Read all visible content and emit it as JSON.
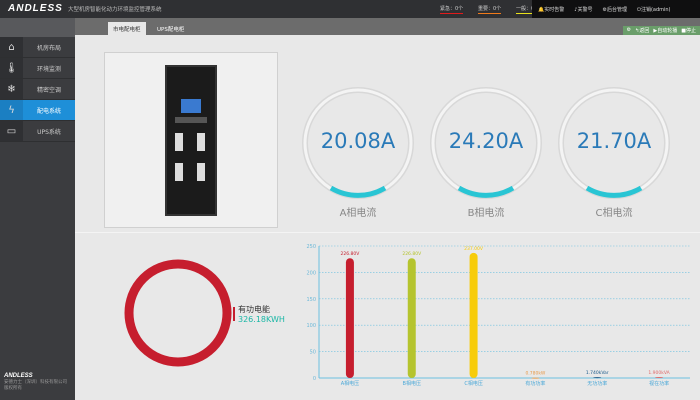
{
  "header": {
    "logo": "ANDLESS",
    "title": "大型机房智能化动力环境监控管理系统",
    "alarms": [
      {
        "label": "紧急：0个",
        "color": "#e01b1b"
      },
      {
        "label": "重要：0个",
        "color": "#f07a1a"
      },
      {
        "label": "一般：0个",
        "color": "#e8e01a"
      }
    ],
    "right": [
      "实时告警",
      "关警号",
      "后台管理",
      "注销(admin)"
    ]
  },
  "tabs": [
    {
      "label": "市电配电柜",
      "active": true
    },
    {
      "label": "UPS配电柜",
      "active": false
    }
  ],
  "toolbar": {
    "back": "返回",
    "autoplay": "自动轮播",
    "stop": "停止"
  },
  "sidebar": {
    "items": [
      {
        "label": "机房布局",
        "icon": "home-icon",
        "glyph": "⌂"
      },
      {
        "label": "环境监测",
        "icon": "thermometer-icon",
        "glyph": "🌡"
      },
      {
        "label": "精密空调",
        "icon": "snowflake-icon",
        "glyph": "❄"
      },
      {
        "label": "配电系统",
        "icon": "lightning-icon",
        "glyph": "ϟ",
        "active": true
      },
      {
        "label": "UPS系统",
        "icon": "battery-icon",
        "glyph": "▭"
      }
    ]
  },
  "footer": {
    "logo": "ANDLESS",
    "company": "安德力士（深圳）科技有限公司",
    "rights": "版权所有"
  },
  "gauges": [
    {
      "value": "20.08A",
      "label": "A相电流"
    },
    {
      "value": "24.20A",
      "label": "B相电流"
    },
    {
      "value": "21.70A",
      "label": "C相电流"
    }
  ],
  "energy": {
    "label": "有功电能",
    "value": "326.18KWH",
    "ring_color": "#c61e2e"
  },
  "chart_data": {
    "type": "bar",
    "categories": [
      "A相电压",
      "B相电压",
      "C相电压",
      "有功功率",
      "无功功率",
      "视在功率"
    ],
    "values": [
      226.8,
      226.8,
      237.0,
      0.78,
      1.74,
      1.9
    ],
    "data_labels": [
      "226.80V",
      "226.80V",
      "237.00V",
      "0.780kW",
      "1.740kVar",
      "1.900kVA"
    ],
    "colors": [
      "#c61e2e",
      "#b5c42e",
      "#f7cc0a",
      "#e89a4a",
      "#1a5a8a",
      "#e06a6a"
    ],
    "ylim": [
      0,
      250
    ],
    "yticks": [
      0,
      50,
      100,
      150,
      200,
      250
    ],
    "grid": true
  }
}
